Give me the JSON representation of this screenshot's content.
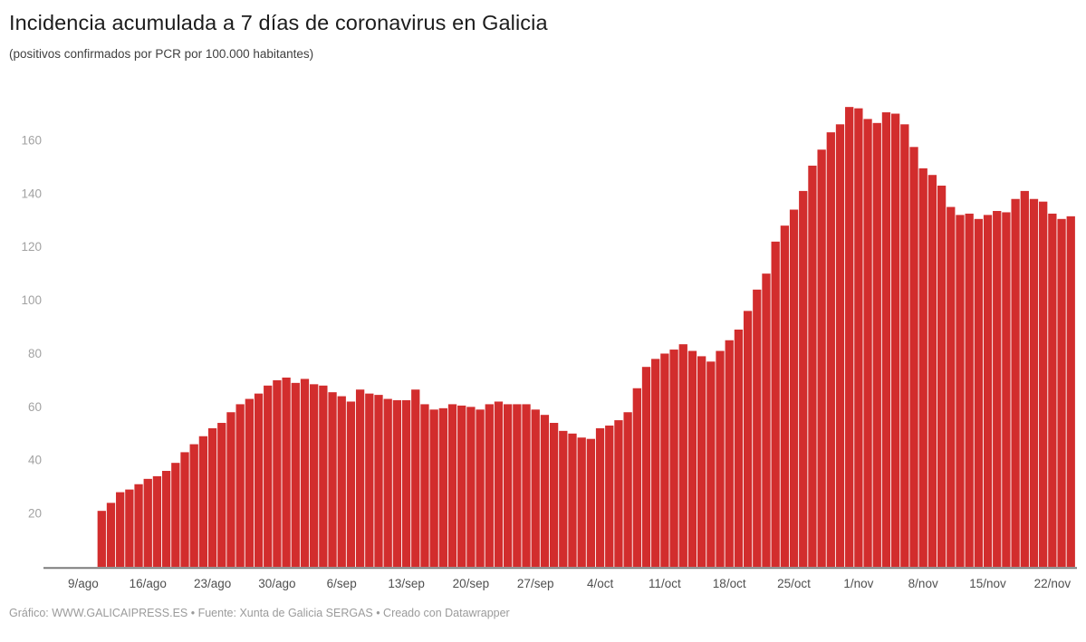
{
  "header": {
    "title": "Incidencia acumulada a 7 días de coronavirus en Galicia",
    "subtitle": "(positivos confirmados por PCR por 100.000 habitantes)"
  },
  "footer": {
    "credit": "Gráfico: WWW.GALICAIPRESS.ES • Fuente: Xunta de Galicia SERGAS • Creado con Datawrapper"
  },
  "chart_data": {
    "type": "bar",
    "title": "Incidencia acumulada a 7 días de coronavirus en Galicia",
    "subtitle": "(positivos confirmados por PCR por 100.000 habitantes)",
    "xlabel": "",
    "ylabel": "",
    "ylim": [
      0,
      178
    ],
    "grid": false,
    "legend": false,
    "bar_color": "#d22d2d",
    "y_ticks": [
      20,
      40,
      60,
      80,
      100,
      120,
      140,
      160
    ],
    "x_tick_labels": [
      "9/ago",
      "16/ago",
      "23/ago",
      "30/ago",
      "6/sep",
      "13/sep",
      "20/sep",
      "27/sep",
      "4/oct",
      "11/oct",
      "18/oct",
      "25/oct",
      "1/nov",
      "8/nov",
      "15/nov",
      "22/nov"
    ],
    "x_tick_day_offsets": [
      -2,
      5,
      12,
      19,
      26,
      33,
      40,
      47,
      54,
      61,
      68,
      75,
      82,
      89,
      96,
      103
    ],
    "categories": [
      "11/ago",
      "12/ago",
      "13/ago",
      "14/ago",
      "15/ago",
      "16/ago",
      "17/ago",
      "18/ago",
      "19/ago",
      "20/ago",
      "21/ago",
      "22/ago",
      "23/ago",
      "24/ago",
      "25/ago",
      "26/ago",
      "27/ago",
      "28/ago",
      "29/ago",
      "30/ago",
      "31/ago",
      "1/sep",
      "2/sep",
      "3/sep",
      "4/sep",
      "5/sep",
      "6/sep",
      "7/sep",
      "8/sep",
      "9/sep",
      "10/sep",
      "11/sep",
      "12/sep",
      "13/sep",
      "14/sep",
      "15/sep",
      "16/sep",
      "17/sep",
      "18/sep",
      "19/sep",
      "20/sep",
      "21/sep",
      "22/sep",
      "23/sep",
      "24/sep",
      "25/sep",
      "26/sep",
      "27/sep",
      "28/sep",
      "29/sep",
      "30/sep",
      "1/oct",
      "2/oct",
      "3/oct",
      "4/oct",
      "5/oct",
      "6/oct",
      "7/oct",
      "8/oct",
      "9/oct",
      "10/oct",
      "11/oct",
      "12/oct",
      "13/oct",
      "14/oct",
      "15/oct",
      "16/oct",
      "17/oct",
      "18/oct",
      "19/oct",
      "20/oct",
      "21/oct",
      "22/oct",
      "23/oct",
      "24/oct",
      "25/oct",
      "26/oct",
      "27/oct",
      "28/oct",
      "29/oct",
      "30/oct",
      "31/oct",
      "1/nov",
      "2/nov",
      "3/nov",
      "4/nov",
      "5/nov",
      "6/nov",
      "7/nov",
      "8/nov",
      "9/nov",
      "10/nov",
      "11/nov",
      "12/nov",
      "13/nov",
      "14/nov",
      "15/nov",
      "16/nov",
      "17/nov",
      "18/nov",
      "19/nov",
      "20/nov",
      "21/nov",
      "22/nov",
      "23/nov",
      "24/nov"
    ],
    "values": [
      21,
      24,
      28,
      29,
      31,
      33,
      34,
      36,
      39,
      43,
      46,
      49,
      52,
      54,
      58,
      61,
      63,
      65,
      68,
      70,
      71,
      69,
      70.5,
      68.5,
      68,
      65.5,
      64,
      62,
      66.5,
      65,
      64.5,
      63,
      62.5,
      62.5,
      66.5,
      61,
      59,
      59.5,
      61,
      60.5,
      60,
      59,
      61,
      62,
      61,
      61,
      61,
      59,
      57,
      54,
      51,
      50,
      48.5,
      48,
      52,
      53,
      55,
      58,
      67,
      75,
      78,
      80,
      81.5,
      83.5,
      81,
      79,
      77,
      81,
      85,
      89,
      96,
      104,
      110,
      122,
      128,
      134,
      141,
      150.5,
      156.5,
      163,
      166,
      172.5,
      172,
      168,
      166.5,
      170.5,
      170,
      166,
      157.5,
      149.5,
      147,
      143,
      135,
      132,
      132.5,
      130.5,
      132,
      133.5,
      133,
      138,
      141,
      138,
      137,
      132.5,
      130.5,
      131.5
    ]
  }
}
